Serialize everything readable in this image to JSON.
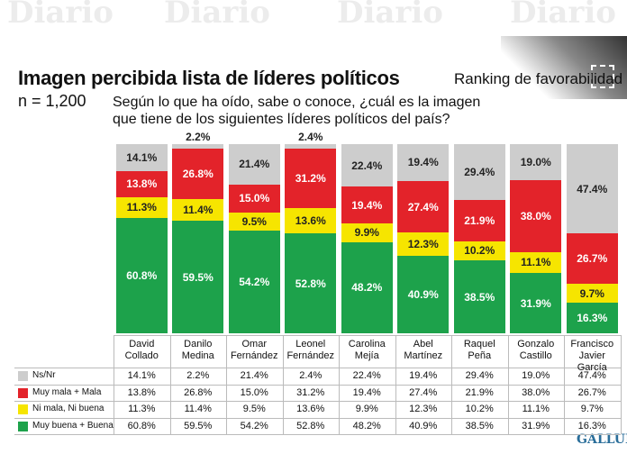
{
  "watermark": "Diario",
  "logo": "GALLUP",
  "chart_data": {
    "type": "stacked_bar",
    "title": "Imagen percibida lista de líderes políticos",
    "subtitle_right": "Ranking de favorabilidad",
    "sample": "n = 1,200",
    "question": [
      "Según lo que ha oído, sabe o conoce, ¿cuál es la imagen",
      "que tiene de los siguientes líderes políticos del país?"
    ],
    "categories": [
      "David Collado",
      "Danilo Medina",
      "Omar Fernández",
      "Leonel Fernández",
      "Carolina Mejía",
      "Abel Martínez",
      "Raquel Peña",
      "Gonzalo Castillo",
      "Francisco Javier García"
    ],
    "ylim": [
      0,
      100
    ],
    "series": [
      {
        "name": "Ns/Nr",
        "color": "#cdcdcd",
        "text_color": "#222",
        "values": [
          14.1,
          2.2,
          21.4,
          2.4,
          22.4,
          19.4,
          29.4,
          19.0,
          47.4
        ],
        "value_labels": [
          "14.1%",
          "2.2%",
          "21.4%",
          "2.4%",
          "22.4%",
          "19.4%",
          "29.4%",
          "19.0%",
          "47.4%"
        ]
      },
      {
        "name": "Muy mala + Mala",
        "color": "#e3232a",
        "text_color": "#fff",
        "values": [
          13.8,
          26.8,
          15.0,
          31.2,
          19.4,
          27.4,
          21.9,
          38.0,
          26.7
        ],
        "value_labels": [
          "13.8%",
          "26.8%",
          "15.0%",
          "31.2%",
          "19.4%",
          "27.4%",
          "21.9%",
          "38.0%",
          "26.7%"
        ]
      },
      {
        "name": "Ni mala, Ni buena",
        "color": "#f6e500",
        "text_color": "#222",
        "values": [
          11.3,
          11.4,
          9.5,
          13.6,
          9.9,
          12.3,
          10.2,
          11.1,
          9.7
        ],
        "value_labels": [
          "11.3%",
          "11.4%",
          "9.5%",
          "13.6%",
          "9.9%",
          "12.3%",
          "10.2%",
          "11.1%",
          "9.7%"
        ]
      },
      {
        "name": "Muy buena + Buena",
        "color": "#1da24b",
        "text_color": "#fff",
        "values": [
          60.8,
          59.5,
          54.2,
          52.8,
          48.2,
          40.9,
          38.5,
          31.9,
          16.3
        ],
        "value_labels": [
          "60.8%",
          "59.5%",
          "54.2%",
          "52.8%",
          "48.2%",
          "40.9%",
          "38.5%",
          "31.9%",
          "16.3%"
        ]
      }
    ]
  }
}
